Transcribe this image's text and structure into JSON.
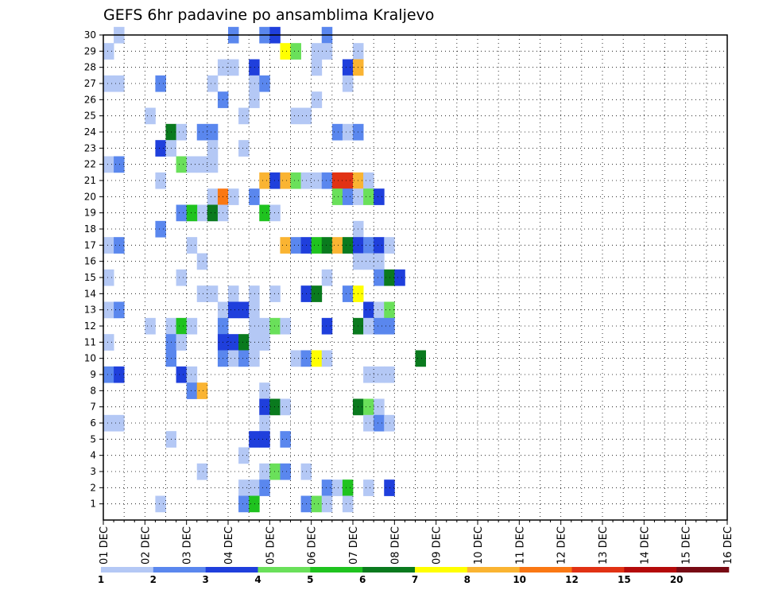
{
  "chart_data": {
    "type": "heatmap",
    "title": "GEFS 6hr padavine po ansamblima Kraljevo",
    "x_labels": [
      "01 DEC",
      "02 DEC",
      "03 DEC",
      "04 DEC",
      "05 DEC",
      "06 DEC",
      "07 DEC",
      "08 DEC",
      "09 DEC",
      "10 DEC",
      "11 DEC",
      "12 DEC",
      "13 DEC",
      "14 DEC",
      "15 DEC",
      "16 DEC"
    ],
    "y_labels": [
      "1",
      "2",
      "3",
      "4",
      "5",
      "6",
      "7",
      "8",
      "9",
      "10",
      "11",
      "12",
      "13",
      "14",
      "15",
      "16",
      "17",
      "18",
      "19",
      "20",
      "21",
      "22",
      "23",
      "24",
      "25",
      "26",
      "27",
      "28",
      "29",
      "30"
    ],
    "x_range": [
      "01 DEC 00",
      "16 DEC 00"
    ],
    "y_range": [
      0,
      30
    ],
    "grid": true,
    "legend_placement": "bottom",
    "legend_levels": [
      "1",
      "2",
      "3",
      "4",
      "5",
      "6",
      "7",
      "8",
      "10",
      "12",
      "15",
      "20"
    ],
    "legend_colors": [
      "#b4c8f5",
      "#5a87ee",
      "#1f3fdc",
      "#6ae05a",
      "#1fc31f",
      "#0a7a1e",
      "#ffff00",
      "#fab432",
      "#fa7814",
      "#e13214",
      "#b40a0a",
      "#780a14"
    ],
    "cells": [
      [
        1,
        30,
        1
      ],
      [
        12,
        30,
        2
      ],
      [
        15,
        30,
        2
      ],
      [
        16,
        30,
        3
      ],
      [
        21,
        30,
        2
      ],
      [
        0,
        29,
        1
      ],
      [
        17,
        29,
        7
      ],
      [
        18,
        29,
        4
      ],
      [
        20,
        29,
        1
      ],
      [
        21,
        29,
        1
      ],
      [
        24,
        29,
        1
      ],
      [
        11,
        28,
        1
      ],
      [
        12,
        28,
        1
      ],
      [
        14,
        28,
        3
      ],
      [
        20,
        28,
        1
      ],
      [
        23,
        28,
        3
      ],
      [
        24,
        28,
        8
      ],
      [
        0,
        27,
        1
      ],
      [
        1,
        27,
        1
      ],
      [
        5,
        27,
        2
      ],
      [
        10,
        27,
        1
      ],
      [
        14,
        27,
        1
      ],
      [
        15,
        27,
        2
      ],
      [
        23,
        27,
        1
      ],
      [
        11,
        26,
        2
      ],
      [
        14,
        26,
        1
      ],
      [
        20,
        26,
        1
      ],
      [
        4,
        25,
        1
      ],
      [
        13,
        25,
        1
      ],
      [
        18,
        25,
        1
      ],
      [
        19,
        25,
        1
      ],
      [
        6,
        24,
        6
      ],
      [
        7,
        24,
        1
      ],
      [
        9,
        24,
        2
      ],
      [
        10,
        24,
        2
      ],
      [
        22,
        24,
        2
      ],
      [
        23,
        24,
        1
      ],
      [
        24,
        24,
        2
      ],
      [
        5,
        23,
        3
      ],
      [
        6,
        23,
        1
      ],
      [
        10,
        23,
        1
      ],
      [
        13,
        23,
        1
      ],
      [
        0,
        22,
        1
      ],
      [
        1,
        22,
        2
      ],
      [
        7,
        22,
        4
      ],
      [
        8,
        22,
        1
      ],
      [
        9,
        22,
        1
      ],
      [
        10,
        22,
        1
      ],
      [
        5,
        21,
        1
      ],
      [
        15,
        21,
        8
      ],
      [
        16,
        21,
        3
      ],
      [
        17,
        21,
        8
      ],
      [
        18,
        21,
        4
      ],
      [
        19,
        21,
        1
      ],
      [
        20,
        21,
        1
      ],
      [
        21,
        21,
        2
      ],
      [
        22,
        21,
        10
      ],
      [
        23,
        21,
        10
      ],
      [
        24,
        21,
        8
      ],
      [
        25,
        21,
        1
      ],
      [
        10,
        20,
        1
      ],
      [
        11,
        20,
        9
      ],
      [
        12,
        20,
        1
      ],
      [
        14,
        20,
        2
      ],
      [
        22,
        20,
        4
      ],
      [
        23,
        20,
        2
      ],
      [
        24,
        20,
        1
      ],
      [
        25,
        20,
        4
      ],
      [
        26,
        20,
        3
      ],
      [
        8,
        19,
        1
      ],
      [
        9,
        19,
        1
      ],
      [
        10,
        19,
        1
      ],
      [
        7,
        19,
        2
      ],
      [
        8,
        19,
        5
      ],
      [
        10,
        19,
        6
      ],
      [
        11,
        19,
        1
      ],
      [
        15,
        19,
        5
      ],
      [
        16,
        19,
        1
      ],
      [
        5,
        18,
        2
      ],
      [
        24,
        18,
        1
      ],
      [
        0,
        17,
        1
      ],
      [
        1,
        17,
        2
      ],
      [
        8,
        17,
        1
      ],
      [
        17,
        17,
        8
      ],
      [
        18,
        17,
        2
      ],
      [
        19,
        17,
        3
      ],
      [
        20,
        17,
        5
      ],
      [
        21,
        17,
        6
      ],
      [
        22,
        17,
        8
      ],
      [
        23,
        17,
        6
      ],
      [
        24,
        17,
        3
      ],
      [
        25,
        17,
        2
      ],
      [
        26,
        17,
        3
      ],
      [
        27,
        17,
        1
      ],
      [
        9,
        16,
        1
      ],
      [
        24,
        16,
        1
      ],
      [
        25,
        16,
        1
      ],
      [
        26,
        16,
        1
      ],
      [
        0,
        15,
        1
      ],
      [
        7,
        15,
        1
      ],
      [
        21,
        15,
        1
      ],
      [
        26,
        15,
        2
      ],
      [
        27,
        15,
        6
      ],
      [
        28,
        15,
        3
      ],
      [
        9,
        14,
        1
      ],
      [
        10,
        14,
        1
      ],
      [
        12,
        14,
        1
      ],
      [
        14,
        14,
        1
      ],
      [
        16,
        14,
        1
      ],
      [
        19,
        14,
        3
      ],
      [
        20,
        14,
        6
      ],
      [
        23,
        14,
        2
      ],
      [
        24,
        14,
        7
      ],
      [
        0,
        13,
        1
      ],
      [
        1,
        13,
        2
      ],
      [
        11,
        13,
        1
      ],
      [
        12,
        13,
        3
      ],
      [
        13,
        13,
        3
      ],
      [
        14,
        13,
        1
      ],
      [
        25,
        13,
        3
      ],
      [
        26,
        13,
        1
      ],
      [
        27,
        13,
        4
      ],
      [
        4,
        12,
        1
      ],
      [
        6,
        12,
        1
      ],
      [
        7,
        12,
        5
      ],
      [
        8,
        12,
        1
      ],
      [
        11,
        12,
        2
      ],
      [
        14,
        12,
        1
      ],
      [
        15,
        12,
        1
      ],
      [
        16,
        12,
        4
      ],
      [
        17,
        12,
        1
      ],
      [
        21,
        12,
        3
      ],
      [
        24,
        12,
        6
      ],
      [
        25,
        12,
        1
      ],
      [
        26,
        12,
        2
      ],
      [
        27,
        12,
        2
      ],
      [
        0,
        11,
        1
      ],
      [
        6,
        11,
        2
      ],
      [
        7,
        11,
        1
      ],
      [
        11,
        11,
        3
      ],
      [
        12,
        11,
        3
      ],
      [
        13,
        11,
        6
      ],
      [
        14,
        11,
        1
      ],
      [
        15,
        11,
        1
      ],
      [
        6,
        10,
        2
      ],
      [
        11,
        10,
        2
      ],
      [
        12,
        10,
        1
      ],
      [
        13,
        10,
        2
      ],
      [
        14,
        10,
        1
      ],
      [
        18,
        10,
        1
      ],
      [
        19,
        10,
        2
      ],
      [
        20,
        10,
        7
      ],
      [
        21,
        10,
        1
      ],
      [
        30,
        10,
        6
      ],
      [
        0,
        9,
        2
      ],
      [
        1,
        9,
        3
      ],
      [
        7,
        9,
        3
      ],
      [
        8,
        9,
        1
      ],
      [
        25,
        9,
        1
      ],
      [
        26,
        9,
        1
      ],
      [
        27,
        9,
        1
      ],
      [
        8,
        8,
        2
      ],
      [
        9,
        8,
        8
      ],
      [
        15,
        8,
        1
      ],
      [
        15,
        7,
        3
      ],
      [
        16,
        7,
        6
      ],
      [
        17,
        7,
        1
      ],
      [
        24,
        7,
        6
      ],
      [
        25,
        7,
        4
      ],
      [
        26,
        7,
        1
      ],
      [
        0,
        6,
        1
      ],
      [
        1,
        6,
        1
      ],
      [
        15,
        6,
        1
      ],
      [
        25,
        6,
        1
      ],
      [
        26,
        6,
        2
      ],
      [
        27,
        6,
        1
      ],
      [
        6,
        5,
        1
      ],
      [
        14,
        5,
        3
      ],
      [
        15,
        5,
        3
      ],
      [
        17,
        5,
        2
      ],
      [
        13,
        4,
        1
      ],
      [
        9,
        3,
        1
      ],
      [
        15,
        3,
        1
      ],
      [
        16,
        3,
        4
      ],
      [
        17,
        3,
        2
      ],
      [
        19,
        3,
        1
      ],
      [
        13,
        2,
        1
      ],
      [
        14,
        2,
        1
      ],
      [
        15,
        2,
        2
      ],
      [
        21,
        2,
        2
      ],
      [
        22,
        2,
        1
      ],
      [
        23,
        2,
        5
      ],
      [
        25,
        2,
        1
      ],
      [
        27,
        2,
        3
      ],
      [
        5,
        1,
        1
      ],
      [
        13,
        1,
        2
      ],
      [
        14,
        1,
        5
      ],
      [
        19,
        1,
        2
      ],
      [
        20,
        1,
        4
      ],
      [
        21,
        1,
        1
      ],
      [
        23,
        1,
        1
      ]
    ]
  }
}
